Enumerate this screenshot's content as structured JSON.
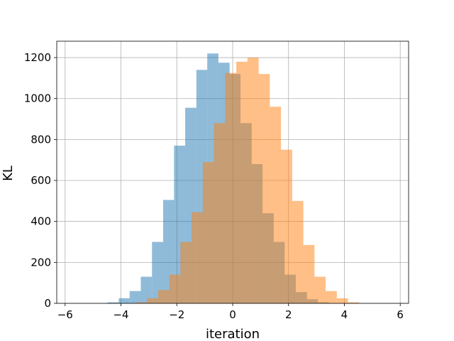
{
  "chart_data": {
    "type": "histogram",
    "xlabel": "iteration",
    "ylabel": "KL",
    "xlim": [
      -6.3,
      6.3
    ],
    "ylim": [
      0,
      1280
    ],
    "xticks": [
      -6,
      -4,
      -2,
      0,
      2,
      4,
      6
    ],
    "yticks": [
      0,
      200,
      400,
      600,
      800,
      1000,
      1200
    ],
    "grid": true,
    "series": [
      {
        "color": "#1f77b4",
        "alpha": 0.5,
        "bins": [
          {
            "x0": -4.48,
            "x1": -4.08,
            "value": 5
          },
          {
            "x0": -4.08,
            "x1": -3.69,
            "value": 25
          },
          {
            "x0": -3.69,
            "x1": -3.29,
            "value": 60
          },
          {
            "x0": -3.29,
            "x1": -2.89,
            "value": 130
          },
          {
            "x0": -2.89,
            "x1": -2.49,
            "value": 300
          },
          {
            "x0": -2.49,
            "x1": -2.1,
            "value": 505
          },
          {
            "x0": -2.1,
            "x1": -1.7,
            "value": 770
          },
          {
            "x0": -1.7,
            "x1": -1.3,
            "value": 955
          },
          {
            "x0": -1.3,
            "x1": -0.91,
            "value": 1140
          },
          {
            "x0": -0.91,
            "x1": -0.51,
            "value": 1220
          },
          {
            "x0": -0.51,
            "x1": -0.11,
            "value": 1175
          },
          {
            "x0": -0.11,
            "x1": 0.28,
            "value": 1120
          },
          {
            "x0": 0.28,
            "x1": 0.68,
            "value": 880
          },
          {
            "x0": 0.68,
            "x1": 1.07,
            "value": 680
          },
          {
            "x0": 1.07,
            "x1": 1.47,
            "value": 440
          },
          {
            "x0": 1.47,
            "x1": 1.86,
            "value": 300
          },
          {
            "x0": 1.86,
            "x1": 2.26,
            "value": 140
          },
          {
            "x0": 2.26,
            "x1": 2.66,
            "value": 55
          },
          {
            "x0": 2.66,
            "x1": 3.05,
            "value": 20
          },
          {
            "x0": 3.05,
            "x1": 3.45,
            "value": 5
          }
        ]
      },
      {
        "color": "#ff7f0e",
        "alpha": 0.5,
        "bins": [
          {
            "x0": -3.47,
            "x1": -3.07,
            "value": 5
          },
          {
            "x0": -3.07,
            "x1": -2.67,
            "value": 25
          },
          {
            "x0": -2.67,
            "x1": -2.27,
            "value": 65
          },
          {
            "x0": -2.27,
            "x1": -1.87,
            "value": 140
          },
          {
            "x0": -1.87,
            "x1": -1.47,
            "value": 300
          },
          {
            "x0": -1.47,
            "x1": -1.07,
            "value": 445
          },
          {
            "x0": -1.07,
            "x1": -0.67,
            "value": 690
          },
          {
            "x0": -0.67,
            "x1": -0.27,
            "value": 880
          },
          {
            "x0": -0.27,
            "x1": 0.13,
            "value": 1125
          },
          {
            "x0": 0.13,
            "x1": 0.53,
            "value": 1180
          },
          {
            "x0": 0.53,
            "x1": 0.93,
            "value": 1200
          },
          {
            "x0": 0.93,
            "x1": 1.33,
            "value": 1120
          },
          {
            "x0": 1.33,
            "x1": 1.73,
            "value": 960
          },
          {
            "x0": 1.73,
            "x1": 2.13,
            "value": 750
          },
          {
            "x0": 2.13,
            "x1": 2.53,
            "value": 500
          },
          {
            "x0": 2.53,
            "x1": 2.93,
            "value": 285
          },
          {
            "x0": 2.93,
            "x1": 3.33,
            "value": 130
          },
          {
            "x0": 3.33,
            "x1": 3.73,
            "value": 60
          },
          {
            "x0": 3.73,
            "x1": 4.13,
            "value": 25
          },
          {
            "x0": 4.13,
            "x1": 4.53,
            "value": 5
          }
        ]
      }
    ]
  }
}
